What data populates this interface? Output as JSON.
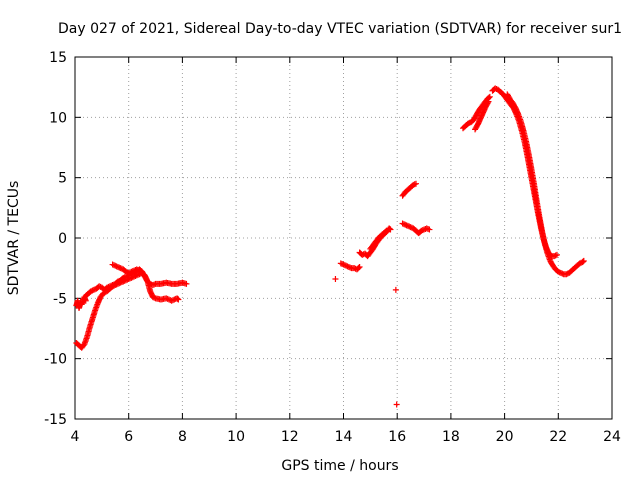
{
  "chart_data": {
    "type": "scatter",
    "title": "Day 027 of 2021, Sidereal Day-to-day VTEC variation (SDTVAR) for receiver sur1",
    "xlabel": "GPS time / hours",
    "ylabel": "SDTVAR / TECUs",
    "xlim": [
      4,
      24
    ],
    "ylim": [
      -15,
      15
    ],
    "xticks": [
      4,
      6,
      8,
      10,
      12,
      14,
      16,
      18,
      20,
      22,
      24
    ],
    "yticks": [
      -15,
      -10,
      -5,
      0,
      5,
      10,
      15
    ],
    "xtick_labels": [
      "4",
      "6",
      "8",
      "10",
      "12",
      "14",
      "16",
      "18",
      "20",
      "22",
      "24"
    ],
    "ytick_labels": [
      "-15",
      "-10",
      "-5",
      "0",
      "5",
      "10",
      "15"
    ],
    "grid": true,
    "marker": "+",
    "color": "#ff0000",
    "series": [
      {
        "name": "sdtvar",
        "segments": [
          [
            [
              4.05,
              -5.6
            ],
            [
              4.1,
              -5.2
            ],
            [
              4.15,
              -5.8
            ],
            [
              4.2,
              -5.4
            ],
            [
              4.25,
              -5.5
            ],
            [
              4.3,
              -5.1
            ],
            [
              4.35,
              -4.9
            ],
            [
              4.4,
              -5.2
            ]
          ],
          [
            [
              4.4,
              -4.8
            ],
            [
              4.5,
              -4.6
            ],
            [
              4.6,
              -4.4
            ],
            [
              4.7,
              -4.3
            ],
            [
              4.8,
              -4.2
            ],
            [
              4.9,
              -4.0
            ],
            [
              5.0,
              -4.1
            ],
            [
              5.1,
              -4.3
            ],
            [
              5.2,
              -4.1
            ],
            [
              5.3,
              -4.0
            ],
            [
              5.4,
              -3.9
            ],
            [
              5.5,
              -3.8
            ],
            [
              5.6,
              -3.6
            ],
            [
              5.7,
              -3.5
            ],
            [
              5.8,
              -3.3
            ],
            [
              5.9,
              -3.2
            ],
            [
              6.0,
              -3.1
            ],
            [
              6.1,
              -3.0
            ],
            [
              6.2,
              -2.9
            ],
            [
              6.3,
              -2.7
            ],
            [
              6.4,
              -2.6
            ],
            [
              6.5,
              -2.8
            ],
            [
              6.6,
              -3.2
            ],
            [
              6.7,
              -3.6
            ],
            [
              6.8,
              -3.8
            ],
            [
              6.9,
              -3.9
            ],
            [
              7.0,
              -3.8
            ],
            [
              7.2,
              -3.8
            ],
            [
              7.4,
              -3.7
            ],
            [
              7.6,
              -3.8
            ],
            [
              7.8,
              -3.8
            ],
            [
              8.0,
              -3.7
            ],
            [
              8.15,
              -3.8
            ]
          ],
          [
            [
              5.4,
              -2.2
            ],
            [
              5.5,
              -2.3
            ],
            [
              5.6,
              -2.4
            ],
            [
              5.7,
              -2.5
            ],
            [
              5.8,
              -2.6
            ],
            [
              5.9,
              -2.8
            ],
            [
              6.0,
              -2.9
            ],
            [
              6.1,
              -2.8
            ],
            [
              6.2,
              -2.7
            ],
            [
              6.3,
              -2.6
            ],
            [
              6.4,
              -2.7
            ],
            [
              6.5,
              -2.9
            ],
            [
              6.6,
              -3.1
            ],
            [
              6.7,
              -3.6
            ],
            [
              6.8,
              -4.4
            ],
            [
              6.9,
              -4.9
            ],
            [
              7.0,
              -5.0
            ],
            [
              7.2,
              -5.1
            ],
            [
              7.4,
              -5.0
            ],
            [
              7.6,
              -5.2
            ],
            [
              7.8,
              -5.0
            ],
            [
              7.85,
              -5.1
            ]
          ],
          [
            [
              4.05,
              -8.7
            ],
            [
              4.15,
              -8.9
            ],
            [
              4.25,
              -9.1
            ],
            [
              4.35,
              -8.8
            ],
            [
              4.45,
              -8.2
            ],
            [
              4.55,
              -7.4
            ],
            [
              4.65,
              -6.7
            ],
            [
              4.75,
              -6.0
            ],
            [
              4.85,
              -5.4
            ],
            [
              4.95,
              -4.9
            ],
            [
              5.05,
              -4.6
            ],
            [
              5.2,
              -4.4
            ],
            [
              5.35,
              -4.1
            ],
            [
              5.5,
              -3.9
            ],
            [
              5.7,
              -3.7
            ],
            [
              5.9,
              -3.5
            ],
            [
              6.1,
              -3.3
            ],
            [
              6.3,
              -3.1
            ],
            [
              6.5,
              -2.9
            ]
          ],
          [
            [
              13.7,
              -3.4
            ]
          ],
          [
            [
              13.9,
              -2.1
            ],
            [
              14.0,
              -2.2
            ],
            [
              14.1,
              -2.3
            ],
            [
              14.2,
              -2.4
            ],
            [
              14.3,
              -2.5
            ],
            [
              14.4,
              -2.5
            ],
            [
              14.5,
              -2.6
            ],
            [
              14.6,
              -2.4
            ]
          ],
          [
            [
              14.6,
              -1.2
            ],
            [
              14.7,
              -1.4
            ],
            [
              14.8,
              -1.3
            ],
            [
              14.9,
              -1.5
            ],
            [
              15.0,
              -1.2
            ],
            [
              15.1,
              -0.9
            ],
            [
              15.2,
              -0.5
            ],
            [
              15.3,
              -0.2
            ],
            [
              15.4,
              0.1
            ],
            [
              15.5,
              0.3
            ],
            [
              15.6,
              0.5
            ],
            [
              15.7,
              0.8
            ],
            [
              15.75,
              0.7
            ]
          ],
          [
            [
              15.0,
              -0.9
            ],
            [
              15.1,
              -0.6
            ],
            [
              15.2,
              -0.3
            ],
            [
              15.3,
              0.0
            ],
            [
              15.4,
              0.2
            ],
            [
              15.5,
              0.4
            ],
            [
              15.6,
              0.6
            ]
          ],
          [
            [
              15.95,
              -4.3
            ]
          ],
          [
            [
              15.98,
              -13.8
            ]
          ],
          [
            [
              16.2,
              3.5
            ],
            [
              16.3,
              3.8
            ],
            [
              16.4,
              4.0
            ],
            [
              16.5,
              4.2
            ],
            [
              16.6,
              4.4
            ],
            [
              16.7,
              4.5
            ]
          ],
          [
            [
              16.2,
              1.2
            ],
            [
              16.3,
              1.1
            ],
            [
              16.4,
              1.0
            ],
            [
              16.5,
              0.9
            ],
            [
              16.6,
              0.8
            ],
            [
              16.7,
              0.6
            ],
            [
              16.8,
              0.4
            ],
            [
              16.9,
              0.6
            ],
            [
              17.0,
              0.7
            ],
            [
              17.1,
              0.8
            ],
            [
              17.2,
              0.7
            ]
          ],
          [
            [
              18.45,
              9.1
            ],
            [
              18.55,
              9.3
            ],
            [
              18.65,
              9.5
            ],
            [
              18.75,
              9.6
            ],
            [
              18.85,
              9.8
            ],
            [
              18.95,
              10.2
            ],
            [
              19.05,
              10.6
            ],
            [
              19.15,
              10.9
            ],
            [
              19.25,
              11.2
            ],
            [
              19.35,
              11.5
            ],
            [
              19.45,
              11.7
            ]
          ],
          [
            [
              18.9,
              9.0
            ],
            [
              19.0,
              9.4
            ],
            [
              19.1,
              9.9
            ],
            [
              19.2,
              10.4
            ],
            [
              19.3,
              10.9
            ],
            [
              19.4,
              11.3
            ]
          ],
          [
            [
              19.55,
              12.2
            ],
            [
              19.65,
              12.4
            ],
            [
              19.75,
              12.3
            ],
            [
              19.85,
              12.1
            ],
            [
              19.95,
              11.9
            ],
            [
              20.05,
              11.6
            ],
            [
              20.15,
              11.3
            ],
            [
              20.25,
              11.0
            ],
            [
              20.35,
              10.7
            ],
            [
              20.45,
              10.2
            ],
            [
              20.55,
              9.6
            ],
            [
              20.65,
              8.8
            ],
            [
              20.75,
              7.9
            ],
            [
              20.85,
              6.8
            ],
            [
              20.95,
              5.6
            ],
            [
              21.05,
              4.4
            ],
            [
              21.15,
              3.2
            ],
            [
              21.25,
              2.0
            ],
            [
              21.35,
              0.9
            ],
            [
              21.45,
              -0.1
            ],
            [
              21.55,
              -0.8
            ],
            [
              21.65,
              -1.3
            ],
            [
              21.75,
              -1.5
            ],
            [
              21.85,
              -1.5
            ],
            [
              21.95,
              -1.4
            ]
          ],
          [
            [
              20.1,
              11.9
            ],
            [
              20.2,
              11.5
            ],
            [
              20.3,
              11.2
            ],
            [
              20.4,
              10.8
            ],
            [
              20.5,
              10.3
            ],
            [
              20.6,
              9.7
            ],
            [
              20.7,
              8.9
            ],
            [
              20.8,
              8.0
            ],
            [
              20.9,
              6.9
            ],
            [
              21.0,
              5.7
            ],
            [
              21.1,
              4.4
            ],
            [
              21.2,
              3.0
            ],
            [
              21.3,
              1.7
            ],
            [
              21.4,
              0.5
            ],
            [
              21.5,
              -0.5
            ],
            [
              21.6,
              -1.3
            ],
            [
              21.7,
              -1.9
            ],
            [
              21.8,
              -2.3
            ],
            [
              21.9,
              -2.6
            ],
            [
              22.0,
              -2.8
            ],
            [
              22.1,
              -2.9
            ],
            [
              22.2,
              -3.0
            ],
            [
              22.3,
              -3.0
            ],
            [
              22.4,
              -2.9
            ],
            [
              22.5,
              -2.7
            ],
            [
              22.6,
              -2.5
            ],
            [
              22.7,
              -2.3
            ],
            [
              22.8,
              -2.1
            ],
            [
              22.9,
              -2.0
            ],
            [
              22.95,
              -1.9
            ]
          ]
        ]
      }
    ]
  }
}
